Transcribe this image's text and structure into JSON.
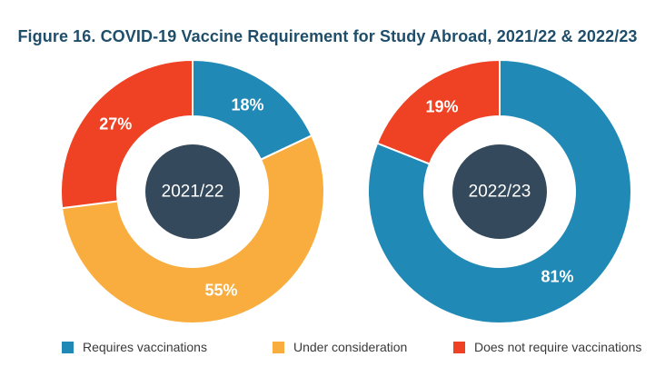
{
  "chart_data": [
    {
      "type": "pie",
      "title": "Figure 16. COVID-19 Vaccine Requirement for Study Abroad, 2021/22 & 2022/23",
      "center_label": "2021/22",
      "slices": [
        {
          "name": "Requires vaccinations",
          "value": 18,
          "label": "18%",
          "color": "#2089b5"
        },
        {
          "name": "Under consideration",
          "value": 55,
          "label": "55%",
          "color": "#f9ad3e"
        },
        {
          "name": "Does not require vaccinations",
          "value": 27,
          "label": "27%",
          "color": "#ef4124"
        }
      ]
    },
    {
      "type": "pie",
      "center_label": "2022/23",
      "slices": [
        {
          "name": "Requires vaccinations",
          "value": 81,
          "label": "81%",
          "color": "#2089b5"
        },
        {
          "name": "Under consideration",
          "value": 0,
          "label": "",
          "color": "#f9ad3e"
        },
        {
          "name": "Does not require vaccinations",
          "value": 19,
          "label": "19%",
          "color": "#ef4124"
        }
      ]
    }
  ],
  "title": "Figure 16. COVID-19 Vaccine Requirement for Study Abroad, 2021/22 & 2022/23",
  "legend": [
    {
      "label": "Requires vaccinations",
      "color": "#2089b5"
    },
    {
      "label": "Under consideration",
      "color": "#f9ad3e"
    },
    {
      "label": "Does not require vaccinations",
      "color": "#ef4124"
    }
  ],
  "colors": {
    "center": "#34495b",
    "background": "#ffffff"
  }
}
